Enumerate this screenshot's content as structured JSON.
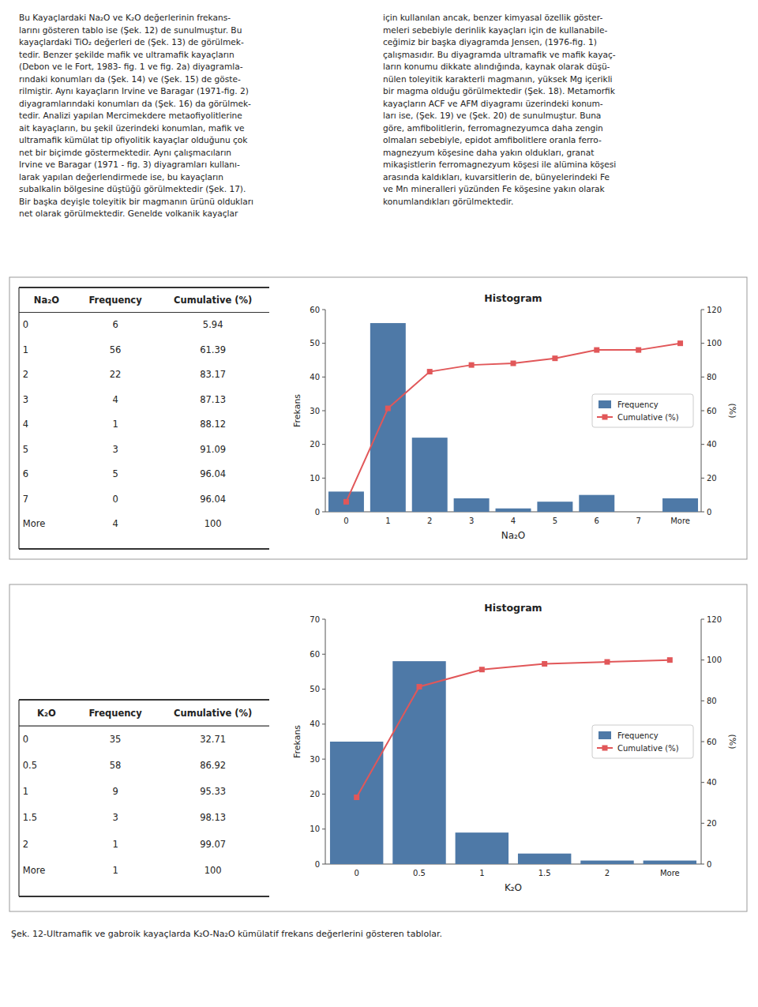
{
  "chart_data": [
    {
      "type": "table",
      "columns": [
        "Na₂O",
        "Frequency",
        "Cumulative (%)"
      ],
      "rows": [
        [
          "0",
          "6",
          "5.94"
        ],
        [
          "1",
          "56",
          "61.39"
        ],
        [
          "2",
          "22",
          "83.17"
        ],
        [
          "3",
          "4",
          "87.13"
        ],
        [
          "4",
          "1",
          "88.12"
        ],
        [
          "5",
          "3",
          "91.09"
        ],
        [
          "6",
          "5",
          "96.04"
        ],
        [
          "7",
          "0",
          "96.04"
        ],
        [
          "More",
          "4",
          "100"
        ]
      ]
    },
    {
      "type": "bar",
      "title": "Histogram",
      "x_label": "Na₂O",
      "y_label": "Frekans",
      "y2_label": "(%)",
      "categories": [
        "0",
        "1",
        "2",
        "3",
        "4",
        "5",
        "6",
        "7",
        "More"
      ],
      "series": [
        {
          "name": "Frequency",
          "type": "bar",
          "values": [
            6,
            56,
            22,
            4,
            1,
            3,
            5,
            0,
            4
          ]
        },
        {
          "name": "Cumulative (%)",
          "type": "line",
          "axis": "y2",
          "marker": "square",
          "values": [
            5.94,
            61.39,
            83.17,
            87.13,
            88.12,
            91.09,
            96.04,
            96.04,
            100
          ]
        }
      ],
      "ylim": [
        0,
        60
      ],
      "yticks": [
        0,
        10,
        20,
        30,
        40,
        50,
        60
      ],
      "y2lim": [
        0,
        120
      ],
      "y2ticks": [
        0,
        20,
        40,
        60,
        80,
        100,
        120
      ],
      "legend": "right",
      "grid": false
    },
    {
      "type": "table",
      "columns": [
        "K₂O",
        "Frequency",
        "Cumulative (%)"
      ],
      "rows": [
        [
          "0",
          "35",
          "32.71"
        ],
        [
          "0.5",
          "58",
          "86.92"
        ],
        [
          "1",
          "9",
          "95.33"
        ],
        [
          "1.5",
          "3",
          "98.13"
        ],
        [
          "2",
          "1",
          "99.07"
        ],
        [
          "More",
          "1",
          "100"
        ]
      ]
    },
    {
      "type": "bar",
      "title": "Histogram",
      "x_label": "K₂O",
      "y_label": "Frekans",
      "y2_label": "(%)",
      "categories": [
        "0",
        "0.5",
        "1",
        "1.5",
        "2",
        "More"
      ],
      "series": [
        {
          "name": "Frequency",
          "type": "bar",
          "values": [
            35,
            58,
            9,
            3,
            1,
            1
          ]
        },
        {
          "name": "Cumulative (%)",
          "type": "line",
          "axis": "y2",
          "marker": "square",
          "values": [
            32.71,
            86.92,
            95.33,
            98.13,
            99.07,
            100
          ]
        }
      ],
      "ylim": [
        0,
        70
      ],
      "yticks": [
        0,
        10,
        20,
        30,
        40,
        50,
        60,
        70
      ],
      "y2lim": [
        0,
        120
      ],
      "y2ticks": [
        0,
        20,
        40,
        60,
        80,
        100,
        120
      ],
      "legend": "right",
      "grid": false
    }
  ],
  "annotations": [
    "Bu Kayaçlardaki Na₂O ve K₂O değerlerinin frekans-\nlarını gösteren tablo ise (Şek. 12) de sunulmuştur. Bu\nkayaçlardaki TiO₂ değerleri de (Şek. 13) de görülmek-\ntedir. Benzer şekilde mafik ve ultramafik kayaçların\n(Debon ve le Fort, 1983- fig. 1 ve fig. 2a) diyagramla-\nrındaki konumları da (Şek. 14) ve (Şek. 15) de göste-\nrilmiştir. Aynı kayaçların Irvine ve Baragar (1971-fig. 2)\ndiyagramlarındaki konumları da (Şek. 16) da görülmek-\ntedir. Analizi yapılan Mercimekdere metaofiyolitlerine\nait kayaçların, bu şekil üzerindeki konumlan, mafik ve\nultramafik kümülat tip ofiyolitik kayaçlar olduğunu çok\nnet bir biçimde göstermektedir. Aynı çalışmacıların\nIrvine ve Baragar (1971 - fig. 3) diyagramları kullanı-\nlarak yapılan değerlendirmede ise, bu kayaçların\nsubalkalin bölgesine düştüğü görülmektedir (Şek. 17).\nBir başka deyişle toleyitik bir magmanın ürünü oldukları\nnet olarak görülmektedir.  Genelde volkanik kayaçlar",
    "için kullanılan ancak, benzer kimyasal özellik göster-\nmeleri sebebiyle derinlik kayaçları için de kullanabile-\nceğimiz bir başka diyagramda Jensen, (1976-fig. 1)\nçalışmasıdır. Bu diyagramda ultramafik ve mafik kayaç-\nların konumu dikkate alındığında, kaynak olarak düşü-\nnülen toleyitik karakterli magmanın, yüksek Mg içerikli\nbir magma olduğu görülmektedir (Şek. 18). Metamorfik\nkayaçların ACF ve AFM diyagramı üzerindeki konum-\nları ise, (Şek. 19) ve (Şek. 20) de sunulmuştur. Buna\ngöre, amfibolitlerin, ferromagnezyumca daha zengin\nolmaları sebebiyle, epidot amfibolitlere oranla ferro-\nmagnezyum köşesine daha yakın oldukları, granat\nmikaşistlerin ferromagnezyum köşesi ile alümina köşesi\narasında kaldıkları, kuvarsitlerin de, bünyelerindeki Fe\nve Mn mineralleri yüzünden Fe köşesine yakın olarak\nkonumlandıkları görülmektedir.",
    "Şek. 12-Ultramafik ve gabroik kayaçlarda K₂O-Na₂O kümülatif frekans değerlerini gösteren tablolar."
  ]
}
